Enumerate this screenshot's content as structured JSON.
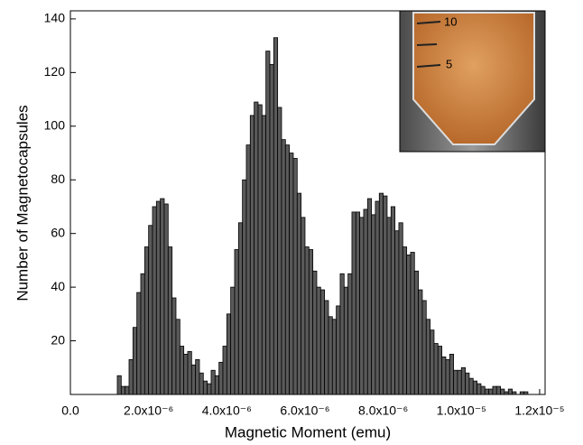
{
  "chart_data": {
    "type": "histogram",
    "x_label": "Magnetic Moment (emu)",
    "y_label": "Number of Magnetocapsules",
    "color": "#5a5a5a",
    "bins": [
      1.2e-06,
      1.3e-06,
      1.4e-06,
      1.5e-06,
      1.6e-06,
      1.7e-06,
      1.8e-06,
      1.9e-06,
      2e-06,
      2.1e-06,
      2.2e-06,
      2.3e-06,
      2.4e-06,
      2.5e-06,
      2.6e-06,
      2.7e-06,
      2.8e-06,
      2.9e-06,
      3e-06,
      3.1e-06,
      3.2e-06,
      3.3e-06,
      3.4e-06,
      3.5e-06,
      3.6e-06,
      3.7e-06,
      3.8e-06,
      3.9e-06,
      4e-06,
      4.1e-06,
      4.2e-06,
      4.3e-06,
      4.4e-06,
      4.5e-06,
      4.6e-06,
      4.7e-06,
      4.8e-06,
      4.9e-06,
      5e-06,
      5.1e-06,
      5.2e-06,
      5.3e-06,
      5.4e-06,
      5.5e-06,
      5.6e-06,
      5.7e-06,
      5.8e-06,
      5.9e-06,
      6e-06,
      6.1e-06,
      6.2e-06,
      6.3e-06,
      6.4e-06,
      6.5e-06,
      6.6e-06,
      6.7e-06,
      6.8e-06,
      6.9e-06,
      7e-06,
      7.1e-06,
      7.2e-06,
      7.3e-06,
      7.4e-06,
      7.5e-06,
      7.6e-06,
      7.7e-06,
      7.8e-06,
      7.9e-06,
      8e-06,
      8.1e-06,
      8.2e-06,
      8.3e-06,
      8.4e-06,
      8.5e-06,
      8.6e-06,
      8.7e-06,
      8.8e-06,
      8.9e-06,
      9e-06,
      9.1e-06,
      9.2e-06,
      9.3e-06,
      9.4e-06,
      9.5e-06,
      9.6e-06,
      9.7e-06,
      9.8e-06,
      9.9e-06,
      1e-05,
      1.01e-05,
      1.02e-05,
      1.03e-05,
      1.04e-05,
      1.05e-05,
      1.06e-05,
      1.07e-05,
      1.08e-05,
      1.09e-05,
      1.1e-05,
      1.11e-05,
      1.12e-05,
      1.13e-05,
      1.14e-05,
      1.15e-05,
      1.16e-05,
      1.17e-05
    ],
    "values": [
      7,
      3,
      3,
      13,
      25,
      38,
      45,
      55,
      63,
      70,
      72,
      73,
      71,
      55,
      36,
      28,
      18,
      15,
      16,
      11,
      13,
      8,
      5,
      4,
      9,
      7,
      12,
      18,
      30,
      40,
      54,
      64,
      80,
      93,
      104,
      109,
      108,
      104,
      128,
      123,
      133,
      107,
      95,
      93,
      90,
      88,
      75,
      66,
      55,
      54,
      46,
      40,
      39,
      35,
      29,
      28,
      33,
      45,
      40,
      45,
      68,
      68,
      66,
      69,
      73,
      67,
      72,
      75,
      74,
      66,
      70,
      61,
      64,
      55,
      52,
      53,
      46,
      39,
      35,
      28,
      24,
      19,
      18,
      14,
      13,
      15,
      9,
      9,
      10,
      8,
      6,
      5,
      4,
      3,
      2,
      2,
      3,
      3,
      2,
      1,
      2,
      1,
      0,
      1,
      1
    ],
    "xlim": [
      0,
      1.214e-05
    ],
    "xticks": [
      {
        "value": 0,
        "label": "0.0"
      },
      {
        "value": 2e-06,
        "label": "2.0x10⁻⁶"
      },
      {
        "value": 4e-06,
        "label": "4.0x10⁻⁶"
      },
      {
        "value": 6e-06,
        "label": "6.0x10⁻⁶"
      },
      {
        "value": 8e-06,
        "label": "8.0x10⁻⁶"
      },
      {
        "value": 1e-05,
        "label": "1.0x10⁻⁵"
      },
      {
        "value": 1.2e-05,
        "label": "1.2x10⁻⁵"
      }
    ],
    "ylim": [
      0,
      143
    ],
    "yticks": [
      20,
      40,
      60,
      80,
      100,
      120,
      140
    ],
    "inset_text": [
      "10",
      "5"
    ]
  }
}
